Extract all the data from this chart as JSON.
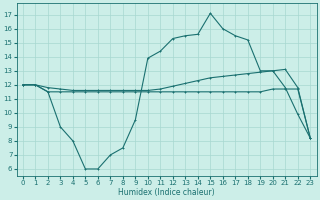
{
  "x": [
    0,
    1,
    2,
    3,
    4,
    5,
    6,
    7,
    8,
    9,
    10,
    11,
    12,
    13,
    14,
    15,
    16,
    17,
    18,
    19,
    20,
    21,
    22,
    23
  ],
  "y_peak": [
    12.0,
    12.0,
    11.5,
    9.0,
    8.0,
    6.0,
    6.0,
    7.0,
    7.5,
    9.5,
    13.9,
    14.4,
    15.3,
    15.5,
    15.6,
    17.1,
    16.0,
    15.5,
    15.2,
    13.0,
    13.0,
    11.8,
    9.9,
    8.2
  ],
  "y_upper": [
    12.0,
    12.0,
    11.8,
    11.7,
    11.6,
    11.6,
    11.6,
    11.6,
    11.6,
    11.6,
    11.6,
    11.7,
    11.9,
    12.1,
    12.3,
    12.5,
    12.6,
    12.7,
    12.8,
    12.9,
    13.0,
    13.1,
    11.8,
    8.2
  ],
  "y_lower": [
    12.0,
    12.0,
    11.5,
    11.5,
    11.5,
    11.5,
    11.5,
    11.5,
    11.5,
    11.5,
    11.5,
    11.5,
    11.5,
    11.5,
    11.5,
    11.5,
    11.5,
    11.5,
    11.5,
    11.5,
    11.7,
    11.7,
    11.7,
    8.2
  ],
  "line_color": "#1a7070",
  "bg_color": "#cceee8",
  "grid_color": "#a8d8d0",
  "xlabel": "Humidex (Indice chaleur)",
  "ylim": [
    5.5,
    17.8
  ],
  "xlim": [
    -0.5,
    23.5
  ],
  "yticks": [
    6,
    7,
    8,
    9,
    10,
    11,
    12,
    13,
    14,
    15,
    16,
    17
  ],
  "xticks": [
    0,
    1,
    2,
    3,
    4,
    5,
    6,
    7,
    8,
    9,
    10,
    11,
    12,
    13,
    14,
    15,
    16,
    17,
    18,
    19,
    20,
    21,
    22,
    23
  ],
  "tick_fontsize": 5.0,
  "xlabel_fontsize": 5.5,
  "lw": 0.8,
  "ms": 2.0
}
